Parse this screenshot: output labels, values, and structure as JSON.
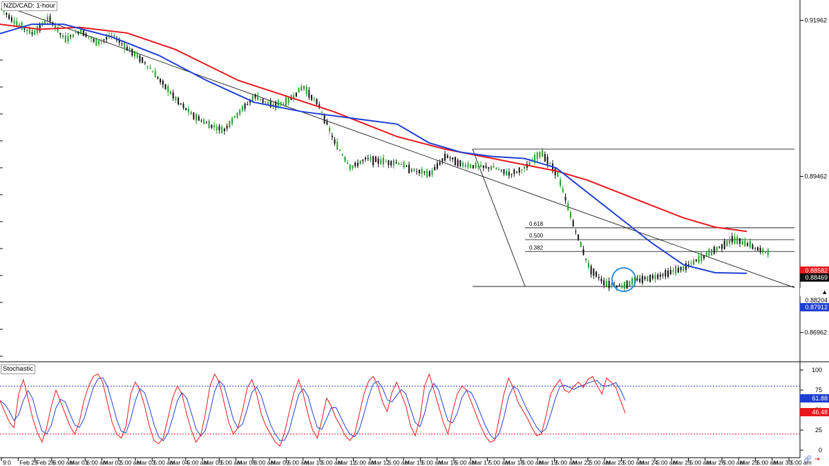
{
  "title": "NZD/CAD: 1-hour",
  "sub_title": "Stochastic",
  "chart_data": {
    "type": "candlestick",
    "symbol": "NZD/CAD",
    "timeframe": "1-hour",
    "y_ticks": [
      "0.91962",
      "0.89462",
      "0.86962"
    ],
    "y_tick_values": [
      0.91962,
      0.89462,
      0.86962
    ],
    "ylim": [
      0.8656,
      0.922
    ],
    "x_labels": [
      "9:0",
      "Feb 25",
      "Feb 26",
      "6:00 am",
      "Mar 01",
      "6:00 am",
      "Mar 02",
      "5:00 am",
      "Mar 03",
      "5:00 am",
      "Mar 04",
      "5:00 am",
      "Mar 05",
      "5:00 am",
      "Mar 08",
      "6:00 am",
      "Mar 09",
      "5:00 am",
      "Mar 10",
      "5:00 am",
      "Mar 11",
      "5:00 am",
      "Mar 12",
      "5:00 am",
      "Mar 15",
      "5:00 am",
      "Mar 16",
      "5:00 am",
      "Mar 17",
      "5:00 am",
      "Mar 18",
      "5:00 am",
      "Mar 19",
      "5:00 am",
      "Mar 22",
      "5:00 am",
      "Mar 23",
      "5:00 am",
      "Mar 24",
      "5:00 am",
      "Mar 25",
      "5:00 am",
      "Mar 26",
      "5:00 am",
      "Mar 29",
      "5:00 am",
      "Mar 30",
      "5:00 am"
    ],
    "price_path": [
      [
        0.0,
        0.9215
      ],
      [
        0.02,
        0.919
      ],
      [
        0.04,
        0.9175
      ],
      [
        0.06,
        0.92
      ],
      [
        0.08,
        0.9165
      ],
      [
        0.1,
        0.918
      ],
      [
        0.12,
        0.916
      ],
      [
        0.14,
        0.9172
      ],
      [
        0.16,
        0.915
      ],
      [
        0.18,
        0.913
      ],
      [
        0.2,
        0.91
      ],
      [
        0.22,
        0.907
      ],
      [
        0.24,
        0.9045
      ],
      [
        0.26,
        0.903
      ],
      [
        0.28,
        0.902
      ],
      [
        0.3,
        0.905
      ],
      [
        0.32,
        0.9075
      ],
      [
        0.34,
        0.906
      ],
      [
        0.36,
        0.9065
      ],
      [
        0.38,
        0.909
      ],
      [
        0.4,
        0.906
      ],
      [
        0.42,
        0.9
      ],
      [
        0.44,
        0.896
      ],
      [
        0.46,
        0.8975
      ],
      [
        0.48,
        0.897
      ],
      [
        0.5,
        0.8968
      ],
      [
        0.52,
        0.8955
      ],
      [
        0.54,
        0.895
      ],
      [
        0.56,
        0.898
      ],
      [
        0.58,
        0.8965
      ],
      [
        0.6,
        0.8962
      ],
      [
        0.62,
        0.896
      ],
      [
        0.64,
        0.895
      ],
      [
        0.66,
        0.896
      ],
      [
        0.68,
        0.8985
      ],
      [
        0.7,
        0.895
      ],
      [
        0.72,
        0.887
      ],
      [
        0.74,
        0.88
      ],
      [
        0.76,
        0.8775
      ],
      [
        0.78,
        0.877
      ],
      [
        0.8,
        0.878
      ],
      [
        0.82,
        0.8785
      ],
      [
        0.84,
        0.8792
      ],
      [
        0.86,
        0.88
      ],
      [
        0.88,
        0.8815
      ],
      [
        0.9,
        0.883
      ],
      [
        0.92,
        0.8845
      ],
      [
        0.94,
        0.8838
      ],
      [
        0.96,
        0.8825
      ],
      [
        0.98,
        0.883
      ],
      [
        1.0,
        0.8826
      ]
    ],
    "ma_red": [
      [
        0.0,
        0.919
      ],
      [
        0.05,
        0.9182
      ],
      [
        0.1,
        0.9185
      ],
      [
        0.16,
        0.9176
      ],
      [
        0.22,
        0.915
      ],
      [
        0.3,
        0.91
      ],
      [
        0.36,
        0.9075
      ],
      [
        0.42,
        0.905
      ],
      [
        0.5,
        0.901
      ],
      [
        0.56,
        0.899
      ],
      [
        0.62,
        0.8975
      ],
      [
        0.66,
        0.8965
      ],
      [
        0.7,
        0.8955
      ],
      [
        0.74,
        0.894
      ],
      [
        0.78,
        0.892
      ],
      [
        0.82,
        0.89
      ],
      [
        0.86,
        0.888
      ],
      [
        0.9,
        0.8865
      ],
      [
        0.94,
        0.8858
      ]
    ],
    "ma_blue": [
      [
        0.0,
        0.9175
      ],
      [
        0.04,
        0.919
      ],
      [
        0.08,
        0.919
      ],
      [
        0.14,
        0.917
      ],
      [
        0.2,
        0.914
      ],
      [
        0.26,
        0.91
      ],
      [
        0.32,
        0.9065
      ],
      [
        0.38,
        0.905
      ],
      [
        0.44,
        0.904
      ],
      [
        0.5,
        0.903
      ],
      [
        0.54,
        0.9
      ],
      [
        0.58,
        0.8985
      ],
      [
        0.62,
        0.8978
      ],
      [
        0.66,
        0.8975
      ],
      [
        0.7,
        0.896
      ],
      [
        0.74,
        0.892
      ],
      [
        0.78,
        0.888
      ],
      [
        0.82,
        0.884
      ],
      [
        0.86,
        0.8805
      ],
      [
        0.9,
        0.8792
      ],
      [
        0.94,
        0.8791
      ]
    ],
    "fibonacci": {
      "high": 0.899,
      "low": 0.877,
      "levels": [
        {
          "label": "0.618",
          "value": 0.8864
        },
        {
          "label": "0.500",
          "value": 0.8845
        },
        {
          "label": "0.382",
          "value": 0.8826
        }
      ]
    },
    "trendline": {
      "start": [
        0.0,
        0.9218
      ],
      "end": [
        1.0,
        0.8768
      ]
    },
    "price_tags": [
      {
        "label": "0.88582",
        "color": "#ffffff",
        "bg": "#e8171c"
      },
      {
        "label": "0.88469",
        "color": "#ffffff",
        "bg": "#111111"
      },
      {
        "label": "0.88204",
        "color": "#000000",
        "bg": "#ffffff"
      },
      {
        "label": "0.87912",
        "color": "#ffffff",
        "bg": "#1f3fd4"
      }
    ],
    "stochastic": {
      "y_ticks": [
        "100",
        "75",
        "50",
        "25",
        "0"
      ],
      "y_tick_values": [
        100,
        75,
        50,
        25,
        0
      ],
      "ylim": [
        0,
        100
      ],
      "upper_level": 80,
      "lower_level": 20,
      "tags": [
        {
          "label": "61.88",
          "color": "#ffffff",
          "bg": "#1f3fd4"
        },
        {
          "label": "46.48",
          "color": "#ffffff",
          "bg": "#e8171c"
        }
      ],
      "k_values": [
        62,
        48,
        35,
        28,
        70,
        88,
        65,
        40,
        22,
        10,
        28,
        55,
        75,
        60,
        45,
        30,
        20,
        35,
        62,
        80,
        92,
        95,
        85,
        60,
        35,
        20,
        15,
        30,
        70,
        85,
        75,
        55,
        30,
        12,
        8,
        15,
        40,
        65,
        80,
        70,
        45,
        25,
        10,
        18,
        45,
        80,
        95,
        85,
        60,
        35,
        20,
        28,
        50,
        78,
        88,
        70,
        45,
        30,
        20,
        10,
        5,
        22,
        48,
        72,
        88,
        70,
        45,
        25,
        15,
        38,
        65,
        55,
        40,
        30,
        18,
        12,
        20,
        45,
        70,
        86,
        92,
        80,
        60,
        48,
        72,
        85,
        70,
        55,
        30,
        18,
        40,
        80,
        95,
        75,
        55,
        35,
        20,
        48,
        70,
        80,
        75,
        60,
        45,
        30,
        18,
        10,
        12,
        40,
        70,
        90,
        78,
        60,
        50,
        40,
        28,
        18,
        20,
        42,
        70,
        80,
        88,
        75,
        72,
        80,
        85,
        78,
        88,
        92,
        80,
        70,
        90,
        85,
        78,
        62,
        46
      ]
    },
    "grid": false,
    "legend": "none"
  },
  "colors": {
    "bull": "#22a02a",
    "bear": "#111111",
    "ma_red": "#e8171c",
    "ma_blue": "#1f3fd4",
    "highlight": "#2a8ce0",
    "stoch_k": "#e8171c",
    "stoch_d": "#1f3fd4"
  },
  "icons": [
    "link-icon",
    "double-arrow-icon"
  ]
}
